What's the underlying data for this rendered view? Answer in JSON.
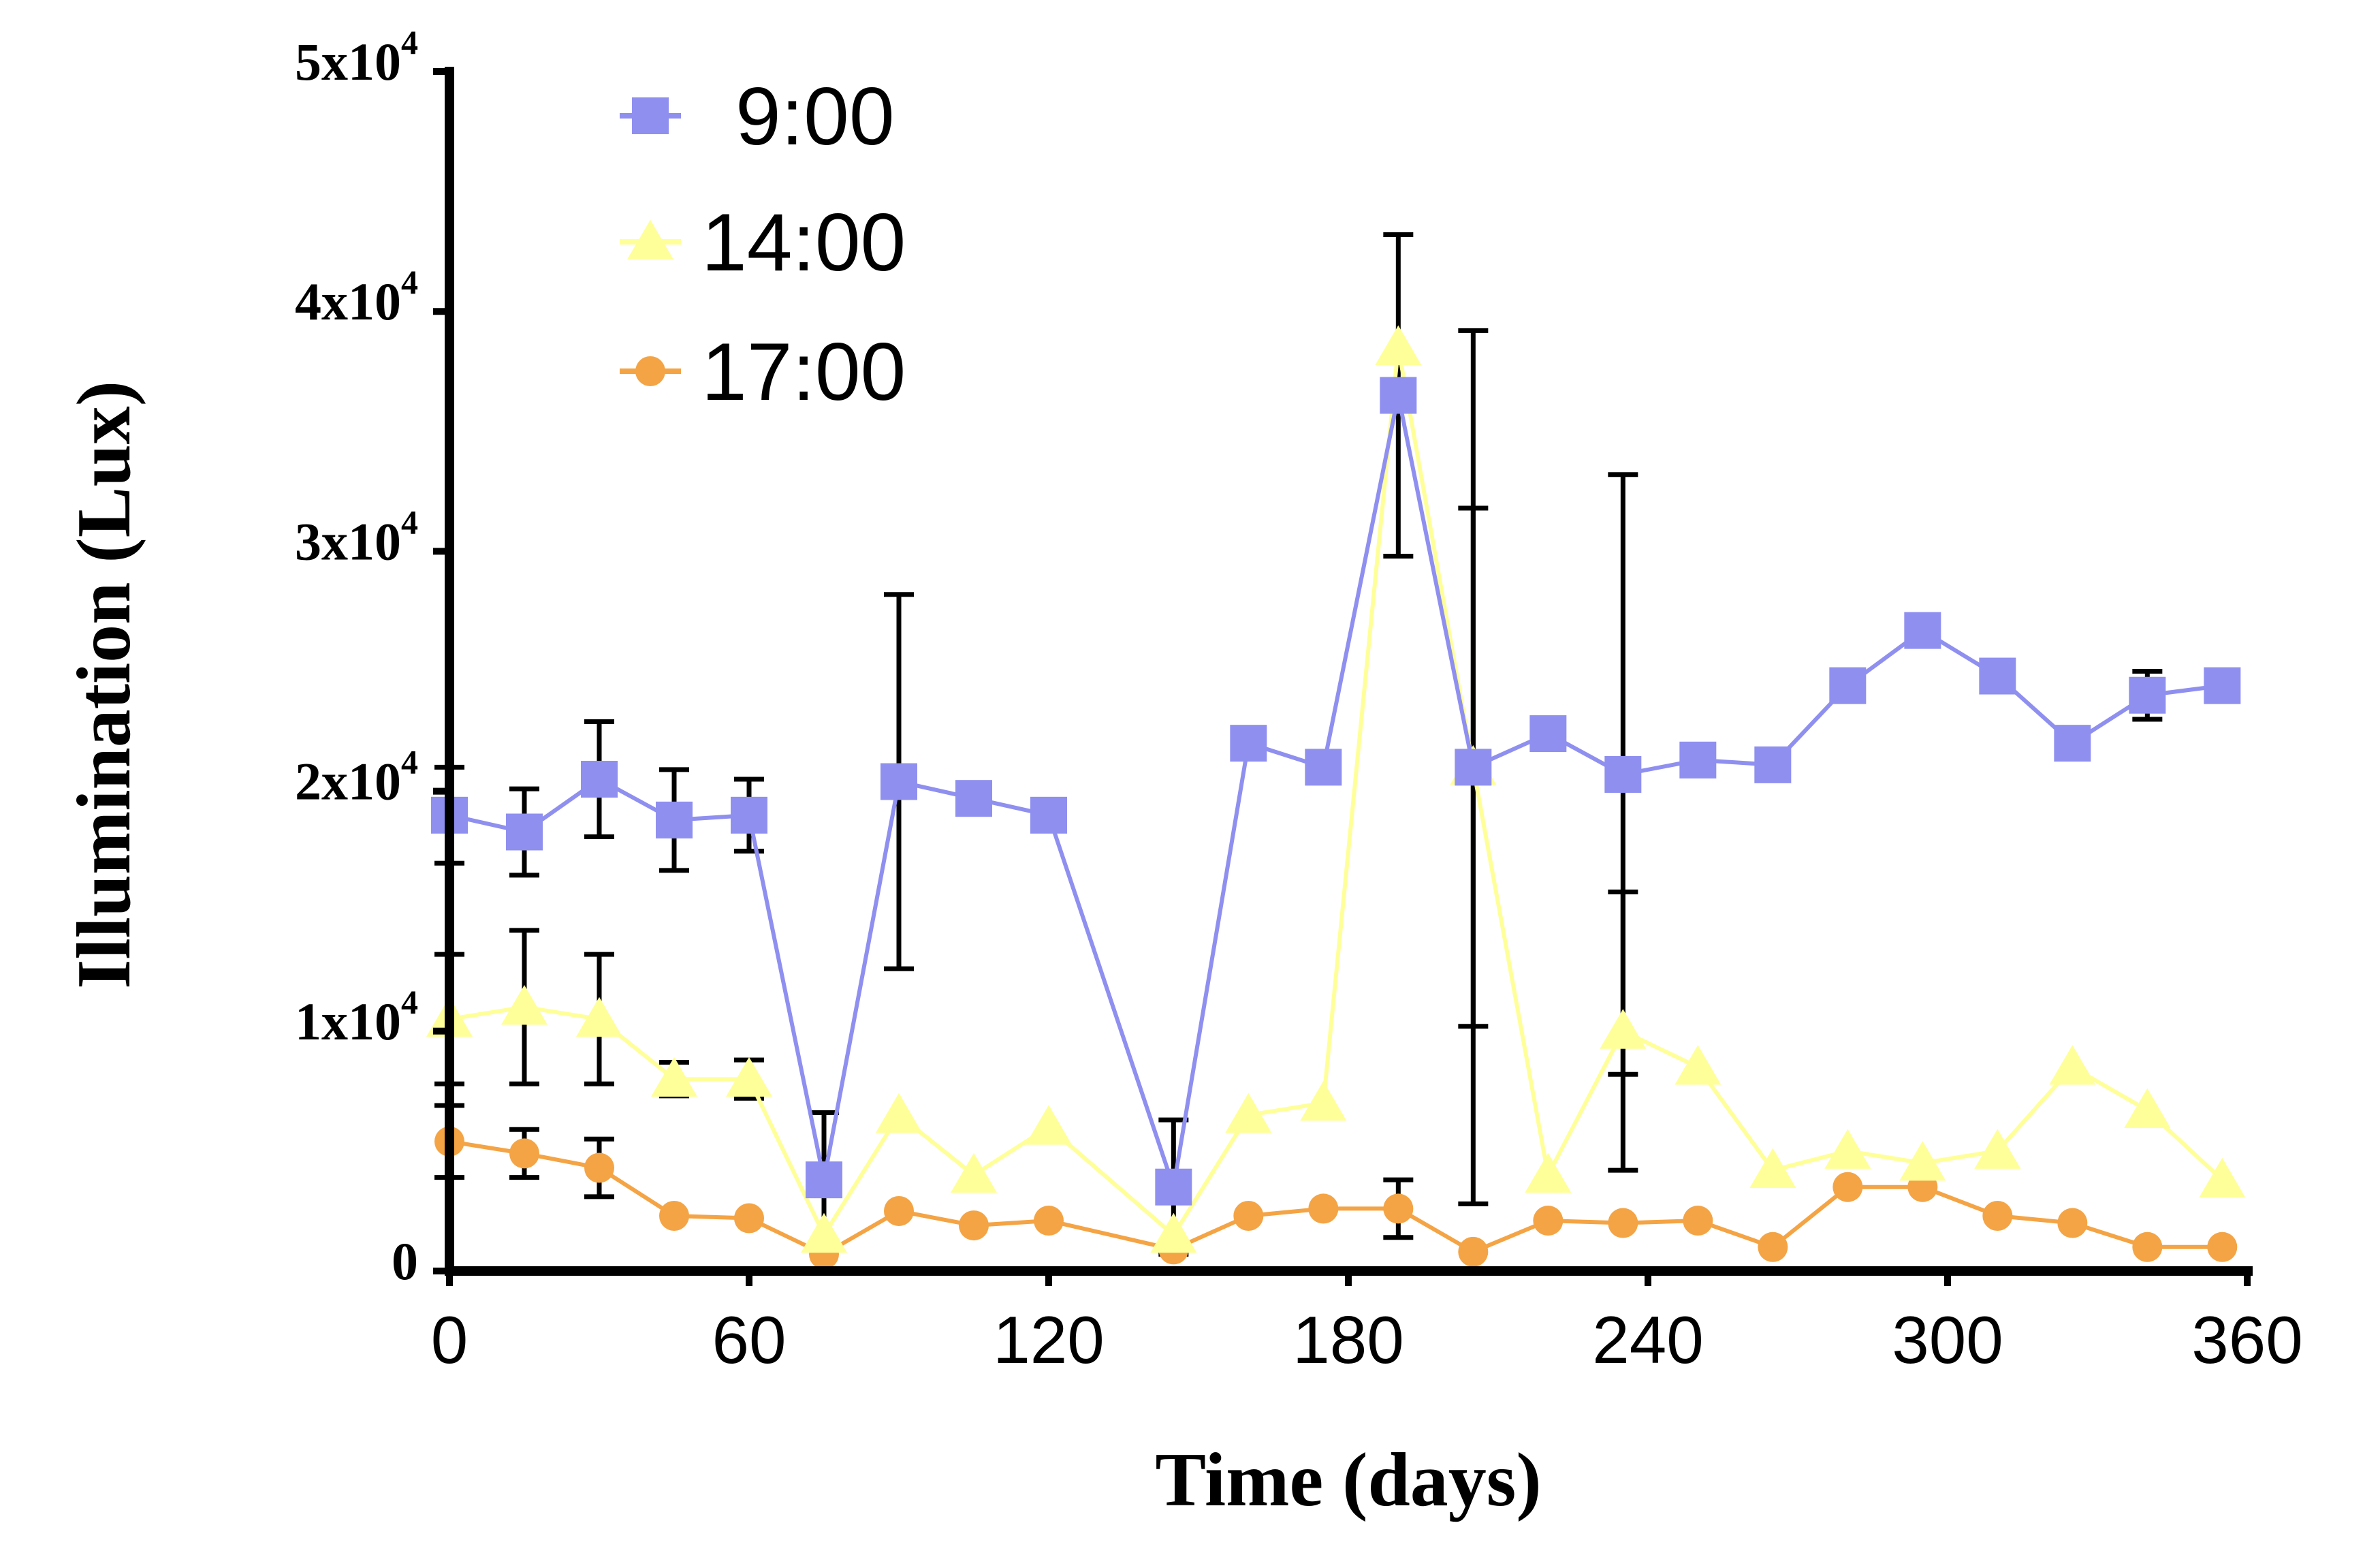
{
  "chart_data": {
    "type": "line",
    "title": "",
    "xlabel": "Time (days)",
    "ylabel": "Illumination (Lux)",
    "xlim": [
      0,
      360
    ],
    "ylim": [
      0,
      50000
    ],
    "grid": false,
    "legend_position": "top-left",
    "x_ticks": [
      "0",
      "60",
      "120",
      "180",
      "240",
      "300",
      "360"
    ],
    "x_tick_values": [
      0,
      60,
      120,
      180,
      240,
      300,
      360
    ],
    "y_ticks": [
      {
        "value": 0,
        "base": "0",
        "exp": ""
      },
      {
        "value": 10000,
        "base": "1x10",
        "exp": "4"
      },
      {
        "value": 20000,
        "base": "2x10",
        "exp": "4"
      },
      {
        "value": 30000,
        "base": "3x10",
        "exp": "4"
      },
      {
        "value": 40000,
        "base": "4x10",
        "exp": "4"
      },
      {
        "value": 50000,
        "base": "5x10",
        "exp": "4"
      }
    ],
    "series": [
      {
        "name": "9:00",
        "color": "#8f8ff0",
        "marker": "square",
        "x": [
          0,
          15,
          30,
          45,
          60,
          75,
          90,
          105,
          120,
          145,
          160,
          175,
          190,
          205,
          220,
          235,
          250,
          265,
          280,
          295,
          310,
          325,
          340,
          355
        ],
        "y": [
          19000,
          18300,
          20500,
          18800,
          19000,
          3800,
          20400,
          19700,
          19000,
          3500,
          22000,
          21000,
          36500,
          21000,
          22400,
          20700,
          21300,
          21100,
          24400,
          26700,
          24800,
          22000,
          24000,
          24400
        ],
        "err": [
          2000,
          1800,
          2400,
          2100,
          1500,
          2800,
          7800,
          0,
          0,
          2800,
          0,
          0,
          6700,
          10800,
          0,
          12500,
          0,
          0,
          0,
          0,
          0,
          0,
          1000,
          0
        ]
      },
      {
        "name": "14:00",
        "color": "#ffff99",
        "marker": "triangle",
        "x": [
          0,
          15,
          30,
          45,
          60,
          75,
          90,
          105,
          120,
          145,
          160,
          175,
          190,
          205,
          220,
          235,
          250,
          265,
          280,
          295,
          310,
          325,
          340,
          355
        ],
        "y": [
          10500,
          11000,
          10500,
          8000,
          8000,
          1500,
          6500,
          4000,
          6000,
          1500,
          6500,
          7000,
          38500,
          21000,
          4000,
          10000,
          8500,
          4200,
          5000,
          4500,
          5000,
          8500,
          6700,
          3800
        ],
        "err": [
          2700,
          3200,
          2700,
          700,
          800,
          0,
          0,
          0,
          0,
          0,
          0,
          0,
          0,
          18200,
          0,
          5800,
          0,
          0,
          0,
          0,
          0,
          0,
          0,
          0
        ]
      },
      {
        "name": "17:00",
        "color": "#f4a444",
        "marker": "circle",
        "x": [
          0,
          15,
          30,
          45,
          60,
          75,
          90,
          105,
          120,
          145,
          160,
          175,
          190,
          205,
          220,
          235,
          250,
          265,
          280,
          295,
          310,
          325,
          340,
          355
        ],
        "y": [
          5400,
          4900,
          4300,
          2300,
          2200,
          700,
          2500,
          1900,
          2100,
          900,
          2300,
          2600,
          2600,
          800,
          2100,
          2000,
          2100,
          1000,
          3500,
          3500,
          2300,
          2000,
          1000,
          1000
        ],
        "err": [
          1500,
          1000,
          1200,
          0,
          0,
          0,
          0,
          0,
          0,
          0,
          0,
          0,
          1200,
          0,
          0,
          0,
          0,
          0,
          0,
          0,
          0,
          0,
          0,
          0
        ]
      }
    ]
  }
}
